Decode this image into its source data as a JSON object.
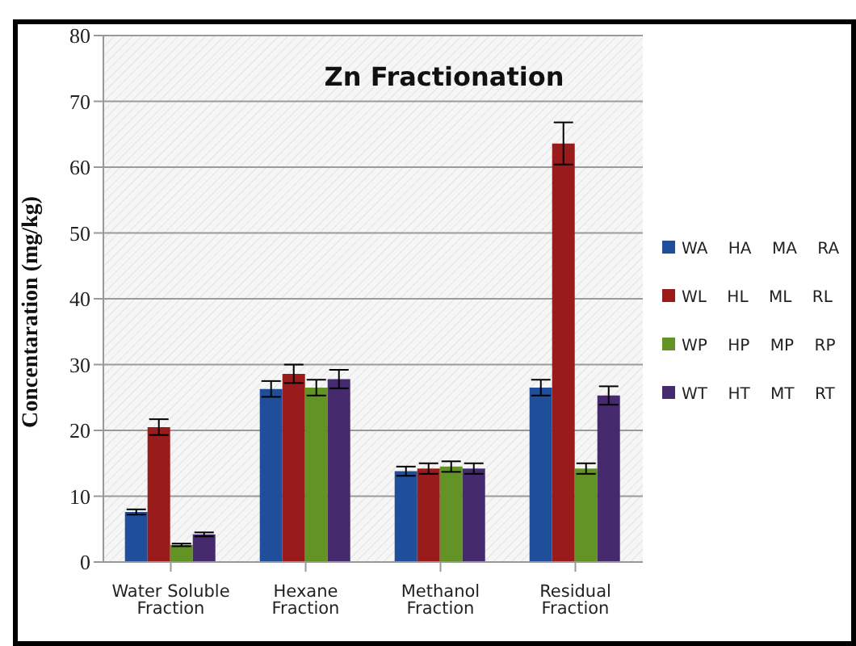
{
  "chart_data": {
    "type": "bar",
    "title": "Zn Fractionation",
    "ylabel": "Concentaration (mg/kg)",
    "categories": [
      "Water Soluble Fraction",
      "Hexane Fraction",
      "Methanol Fraction",
      "Residual Fraction"
    ],
    "series": [
      {
        "name": "WA    HA    MA    RA",
        "color": "#1f4e9a",
        "values": [
          7.6,
          26.3,
          13.8,
          26.5
        ],
        "errors": [
          0.4,
          1.2,
          0.7,
          1.2
        ]
      },
      {
        "name": "WL    HL    ML    RL",
        "color": "#9a1b1b",
        "values": [
          20.5,
          28.6,
          14.2,
          63.6
        ],
        "errors": [
          1.2,
          1.4,
          0.8,
          3.2
        ]
      },
      {
        "name": "WP    HP    MP    RP",
        "color": "#639225",
        "values": [
          2.6,
          26.5,
          14.5,
          14.2
        ],
        "errors": [
          0.2,
          1.2,
          0.8,
          0.8
        ]
      },
      {
        "name": "WT    HT    MT    RT",
        "color": "#452a6e",
        "values": [
          4.2,
          27.8,
          14.2,
          25.3
        ],
        "errors": [
          0.3,
          1.4,
          0.8,
          1.4
        ]
      }
    ],
    "ylim": [
      0,
      80
    ],
    "yticks": [
      0,
      10,
      20,
      30,
      40,
      50,
      60,
      70,
      80
    ],
    "grid": "y",
    "legend": "right"
  }
}
